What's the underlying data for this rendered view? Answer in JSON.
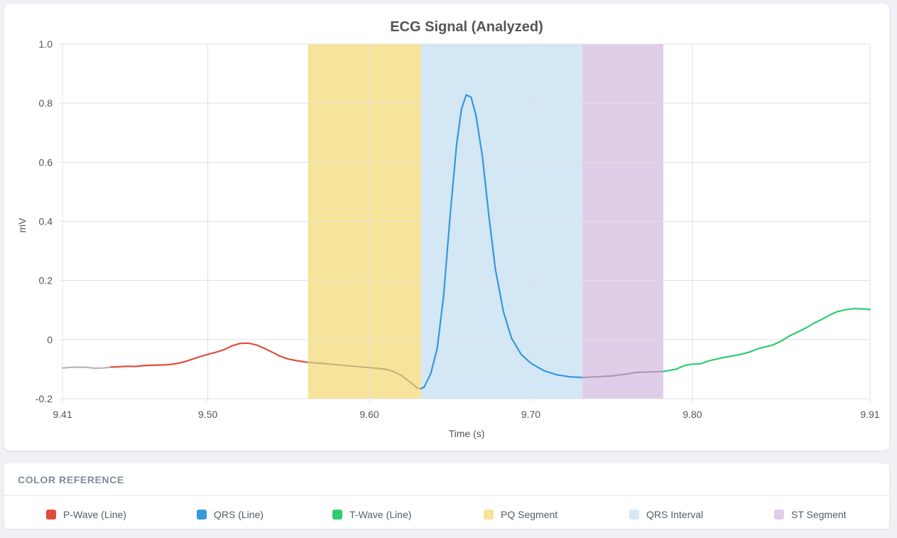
{
  "chart_data": {
    "type": "line",
    "title": "ECG Signal (Analyzed)",
    "xlabel": "Time (s)",
    "ylabel": "mV",
    "xlim": [
      9.41,
      9.91
    ],
    "ylim": [
      -0.2,
      1.0
    ],
    "x_ticks": [
      "9.41",
      "9.50",
      "9.60",
      "9.70",
      "9.80",
      "9.91"
    ],
    "x_tick_values": [
      9.41,
      9.5,
      9.6,
      9.7,
      9.8,
      9.91
    ],
    "y_ticks": [
      "1.0",
      "0.8",
      "0.6",
      "0.4",
      "0.2",
      "0",
      "-0.2"
    ],
    "y_tick_values": [
      1.0,
      0.8,
      0.6,
      0.4,
      0.2,
      0,
      -0.2
    ],
    "grid": true,
    "regions": [
      {
        "name": "PQ Segment",
        "x_start": 9.562,
        "x_end": 9.632,
        "color": "#f7e49b"
      },
      {
        "name": "QRS Interval",
        "x_start": 9.632,
        "x_end": 9.732,
        "color": "#d4e7f5"
      },
      {
        "name": "ST Segment",
        "x_start": 9.732,
        "x_end": 9.782,
        "color": "#e0cde8"
      }
    ],
    "series": [
      {
        "color": "#b5b5b5",
        "points": [
          [
            9.41,
            -0.096
          ],
          [
            9.415,
            -0.094
          ],
          [
            9.42,
            -0.093
          ],
          [
            9.425,
            -0.094
          ],
          [
            9.43,
            -0.097
          ],
          [
            9.435,
            -0.096
          ],
          [
            9.44,
            -0.093
          ]
        ]
      },
      {
        "name": "P-Wave (Line)",
        "color": "#e04c3c",
        "points": [
          [
            9.44,
            -0.093
          ],
          [
            9.445,
            -0.092
          ],
          [
            9.45,
            -0.09
          ],
          [
            9.455,
            -0.091
          ],
          [
            9.46,
            -0.088
          ],
          [
            9.465,
            -0.087
          ],
          [
            9.47,
            -0.086
          ],
          [
            9.475,
            -0.085
          ],
          [
            9.48,
            -0.082
          ],
          [
            9.485,
            -0.076
          ],
          [
            9.49,
            -0.067
          ],
          [
            9.495,
            -0.058
          ],
          [
            9.5,
            -0.05
          ],
          [
            9.505,
            -0.043
          ],
          [
            9.51,
            -0.034
          ],
          [
            9.515,
            -0.021
          ],
          [
            9.52,
            -0.013
          ],
          [
            9.525,
            -0.012
          ],
          [
            9.53,
            -0.018
          ],
          [
            9.535,
            -0.03
          ],
          [
            9.54,
            -0.043
          ],
          [
            9.545,
            -0.057
          ],
          [
            9.55,
            -0.066
          ],
          [
            9.555,
            -0.071
          ],
          [
            9.562,
            -0.077
          ]
        ]
      },
      {
        "color": "#c6b47a",
        "points": [
          [
            9.562,
            -0.077
          ],
          [
            9.57,
            -0.08
          ],
          [
            9.58,
            -0.085
          ],
          [
            9.59,
            -0.09
          ],
          [
            9.6,
            -0.095
          ],
          [
            9.61,
            -0.1
          ],
          [
            9.615,
            -0.108
          ],
          [
            9.62,
            -0.122
          ],
          [
            9.625,
            -0.143
          ],
          [
            9.63,
            -0.165
          ],
          [
            9.632,
            -0.166
          ]
        ]
      },
      {
        "name": "QRS (Line)",
        "color": "#3498db",
        "points": [
          [
            9.632,
            -0.166
          ],
          [
            9.634,
            -0.16
          ],
          [
            9.638,
            -0.115
          ],
          [
            9.642,
            -0.03
          ],
          [
            9.646,
            0.15
          ],
          [
            9.65,
            0.42
          ],
          [
            9.654,
            0.66
          ],
          [
            9.657,
            0.78
          ],
          [
            9.66,
            0.828
          ],
          [
            9.663,
            0.82
          ],
          [
            9.666,
            0.76
          ],
          [
            9.67,
            0.62
          ],
          [
            9.674,
            0.42
          ],
          [
            9.678,
            0.24
          ],
          [
            9.683,
            0.095
          ],
          [
            9.688,
            0.005
          ],
          [
            9.694,
            -0.05
          ],
          [
            9.7,
            -0.08
          ],
          [
            9.708,
            -0.105
          ],
          [
            9.716,
            -0.119
          ],
          [
            9.724,
            -0.126
          ],
          [
            9.732,
            -0.128
          ]
        ]
      },
      {
        "color": "#a89bb8",
        "points": [
          [
            9.732,
            -0.128
          ],
          [
            9.74,
            -0.126
          ],
          [
            9.75,
            -0.123
          ],
          [
            9.76,
            -0.116
          ],
          [
            9.765,
            -0.111
          ],
          [
            9.77,
            -0.11
          ],
          [
            9.782,
            -0.108
          ]
        ]
      },
      {
        "name": "T-Wave (Line)",
        "color": "#2ecc71",
        "points": [
          [
            9.782,
            -0.108
          ],
          [
            9.79,
            -0.1
          ],
          [
            9.795,
            -0.088
          ],
          [
            9.8,
            -0.083
          ],
          [
            9.805,
            -0.082
          ],
          [
            9.81,
            -0.072
          ],
          [
            9.82,
            -0.06
          ],
          [
            9.83,
            -0.05
          ],
          [
            9.835,
            -0.043
          ],
          [
            9.84,
            -0.032
          ],
          [
            9.85,
            -0.018
          ],
          [
            9.855,
            -0.005
          ],
          [
            9.86,
            0.012
          ],
          [
            9.87,
            0.038
          ],
          [
            9.875,
            0.055
          ],
          [
            9.88,
            0.068
          ],
          [
            9.885,
            0.083
          ],
          [
            9.89,
            0.095
          ],
          [
            9.895,
            0.101
          ],
          [
            9.9,
            0.105
          ],
          [
            9.905,
            0.104
          ],
          [
            9.91,
            0.102
          ]
        ]
      }
    ]
  },
  "legend": {
    "title": "COLOR REFERENCE",
    "items": [
      {
        "label": "P-Wave (Line)",
        "color": "#e04c3c"
      },
      {
        "label": "QRS (Line)",
        "color": "#3498db"
      },
      {
        "label": "T-Wave (Line)",
        "color": "#2ecc71"
      },
      {
        "label": "PQ Segment",
        "color": "#f7e49b"
      },
      {
        "label": "QRS Interval",
        "color": "#d4e7f5"
      },
      {
        "label": "ST Segment",
        "color": "#e0cde8"
      }
    ]
  }
}
